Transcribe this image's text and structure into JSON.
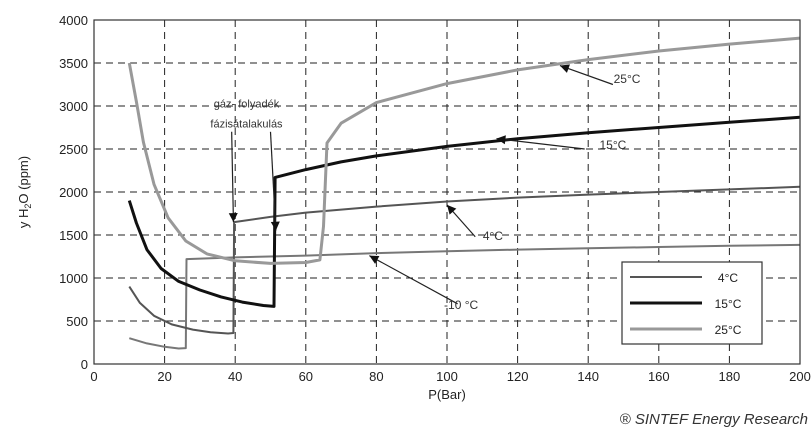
{
  "chart_data": {
    "type": "line",
    "title": "",
    "xlabel": "P(Bar)",
    "ylabel": "y H2O (ppm)",
    "xlim": [
      0,
      200
    ],
    "ylim": [
      0,
      4000
    ],
    "xticks": [
      0,
      20,
      40,
      60,
      80,
      100,
      120,
      140,
      160,
      180,
      200
    ],
    "yticks": [
      0,
      500,
      1000,
      1500,
      2000,
      2500,
      3000,
      3500,
      4000
    ],
    "grid": true,
    "legend_position": "bottom-right",
    "legend": [
      {
        "label": "4°C",
        "color": "#555555",
        "width": 2
      },
      {
        "label": "15°C",
        "color": "#111111",
        "width": 3
      },
      {
        "label": "25°C",
        "color": "#999999",
        "width": 3
      }
    ],
    "series": [
      {
        "color": "#777777",
        "width": 2,
        "points": [
          [
            10,
            300
          ],
          [
            15,
            240
          ],
          [
            20,
            200
          ],
          [
            24,
            180
          ],
          [
            26,
            185
          ],
          [
            26.2,
            1220
          ],
          [
            40,
            1240
          ],
          [
            60,
            1260
          ],
          [
            80,
            1290
          ],
          [
            100,
            1310
          ],
          [
            120,
            1330
          ],
          [
            140,
            1345
          ],
          [
            160,
            1360
          ],
          [
            180,
            1375
          ],
          [
            200,
            1385
          ]
        ]
      },
      {
        "color": "#555555",
        "width": 2,
        "points": [
          [
            10,
            900
          ],
          [
            13,
            710
          ],
          [
            17,
            560
          ],
          [
            22,
            460
          ],
          [
            28,
            400
          ],
          [
            33,
            370
          ],
          [
            38,
            355
          ],
          [
            39.5,
            360
          ],
          [
            39.7,
            1650
          ],
          [
            50,
            1710
          ],
          [
            60,
            1760
          ],
          [
            80,
            1830
          ],
          [
            100,
            1890
          ],
          [
            120,
            1935
          ],
          [
            140,
            1970
          ],
          [
            160,
            2000
          ],
          [
            180,
            2030
          ],
          [
            200,
            2060
          ]
        ]
      },
      {
        "color": "#111111",
        "width": 3,
        "points": [
          [
            10,
            1900
          ],
          [
            12,
            1640
          ],
          [
            15,
            1330
          ],
          [
            19,
            1110
          ],
          [
            24,
            960
          ],
          [
            30,
            860
          ],
          [
            36,
            780
          ],
          [
            42,
            720
          ],
          [
            48,
            680
          ],
          [
            51,
            670
          ],
          [
            51.3,
            2170
          ],
          [
            60,
            2260
          ],
          [
            70,
            2350
          ],
          [
            80,
            2420
          ],
          [
            100,
            2530
          ],
          [
            120,
            2620
          ],
          [
            140,
            2690
          ],
          [
            160,
            2750
          ],
          [
            180,
            2810
          ],
          [
            200,
            2870
          ]
        ]
      },
      {
        "color": "#999999",
        "width": 3,
        "points": [
          [
            10,
            3500
          ],
          [
            12,
            3050
          ],
          [
            14,
            2580
          ],
          [
            17,
            2090
          ],
          [
            21,
            1700
          ],
          [
            26,
            1430
          ],
          [
            32,
            1280
          ],
          [
            40,
            1200
          ],
          [
            50,
            1170
          ],
          [
            60,
            1180
          ],
          [
            64,
            1210
          ],
          [
            65,
            1600
          ],
          [
            66,
            2570
          ],
          [
            70,
            2800
          ],
          [
            80,
            3040
          ],
          [
            100,
            3260
          ],
          [
            120,
            3420
          ],
          [
            140,
            3540
          ],
          [
            160,
            3640
          ],
          [
            180,
            3720
          ],
          [
            200,
            3790
          ]
        ]
      }
    ],
    "annotations": [
      {
        "text": "gáz- folyadék",
        "x": 43.2,
        "y": 2980
      },
      {
        "text": "fázisátalakulás",
        "x": 43.2,
        "y": 2750
      },
      {
        "text": "25°C",
        "x": 151,
        "y": 3270
      },
      {
        "text": "15°C",
        "x": 147,
        "y": 2500
      },
      {
        "text": "4°C",
        "x": 113,
        "y": 1440
      },
      {
        "text": "-10 °C",
        "x": 104,
        "y": 640
      }
    ],
    "arrows": [
      {
        "from": [
          39,
          2700
        ],
        "to": [
          39.5,
          1650
        ]
      },
      {
        "from": [
          50,
          2700
        ],
        "to": [
          51.5,
          1550
        ]
      },
      {
        "from": [
          147,
          3250
        ],
        "to": [
          132,
          3470
        ]
      },
      {
        "from": [
          139,
          2500
        ],
        "to": [
          114,
          2620
        ]
      },
      {
        "from": [
          108,
          1480
        ],
        "to": [
          100,
          1850
        ]
      },
      {
        "from": [
          103,
          700
        ],
        "to": [
          78,
          1260
        ]
      }
    ]
  },
  "credit": "® SINTEF Energy Research"
}
